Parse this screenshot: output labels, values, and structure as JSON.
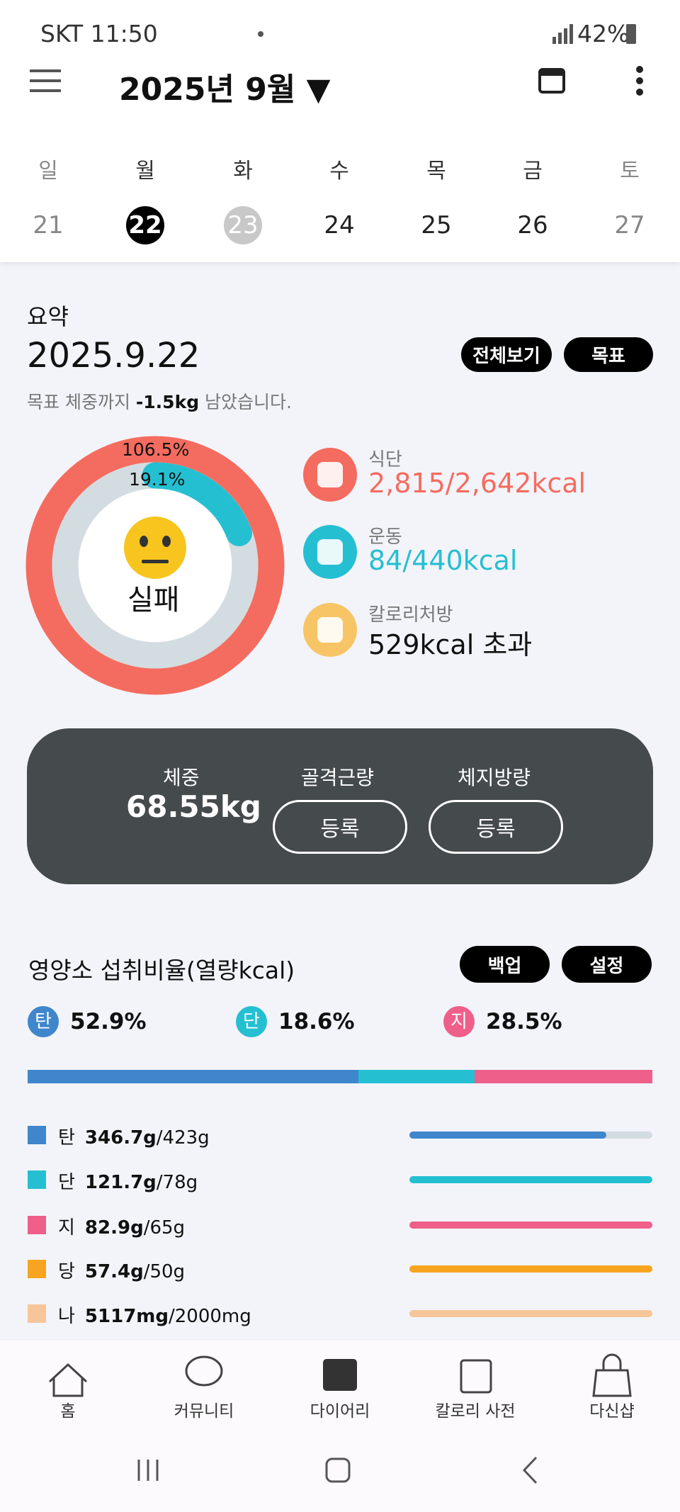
{
  "status_bar": {
    "carrier_time": "SKT 11:50",
    "battery": "42%"
  },
  "header": {
    "title": "2025년 9월 ▼"
  },
  "week": {
    "days": [
      "일",
      "월",
      "화",
      "수",
      "목",
      "금",
      "토"
    ],
    "dates": [
      "21",
      "22",
      "23",
      "24",
      "25",
      "26",
      "27"
    ]
  },
  "summary": {
    "heading": "요약",
    "date": "2025.9.22",
    "buttons": [
      "전체보기",
      "목표"
    ],
    "remaining": {
      "prefix": "목표 체중까지 ",
      "amount": "-1.5kg",
      "suffix": " 남았습니다."
    },
    "ring": {
      "outer_label": "106.5%",
      "inner_label": "19.1%",
      "status": "실패"
    },
    "items": [
      {
        "label": "식단",
        "value": "2,815/2,642kcal"
      },
      {
        "label": "운동",
        "value": "84/440kcal"
      },
      {
        "label": "칼로리처방",
        "value": "529kcal 초과"
      }
    ]
  },
  "body": {
    "weight_label": "체중",
    "weight": "68.55kg",
    "muscle_label": "골격근량",
    "fat_label": "체지방량",
    "register": "등록"
  },
  "nutrition": {
    "title": "영양소 섭취비율(열량kcal)",
    "buttons": [
      "백업",
      "설정"
    ],
    "macros": [
      {
        "badge": "탄",
        "percent": "52.9%"
      },
      {
        "badge": "단",
        "percent": "18.6%"
      },
      {
        "badge": "지",
        "percent": "28.5%"
      }
    ],
    "rows": [
      {
        "name": "탄",
        "amount": "346.7g",
        "goal": "/423g"
      },
      {
        "name": "단",
        "amount": "121.7g",
        "goal": "/78g"
      },
      {
        "name": "지",
        "amount": "82.9g",
        "goal": "/65g"
      },
      {
        "name": "당",
        "amount": "57.4g",
        "goal": "/50g"
      },
      {
        "name": "나",
        "amount": "5117mg",
        "goal": "/2000mg"
      }
    ]
  },
  "nav": [
    "홈",
    "커뮤니티",
    "다이어리",
    "칼로리 사전",
    "다신샵"
  ]
}
